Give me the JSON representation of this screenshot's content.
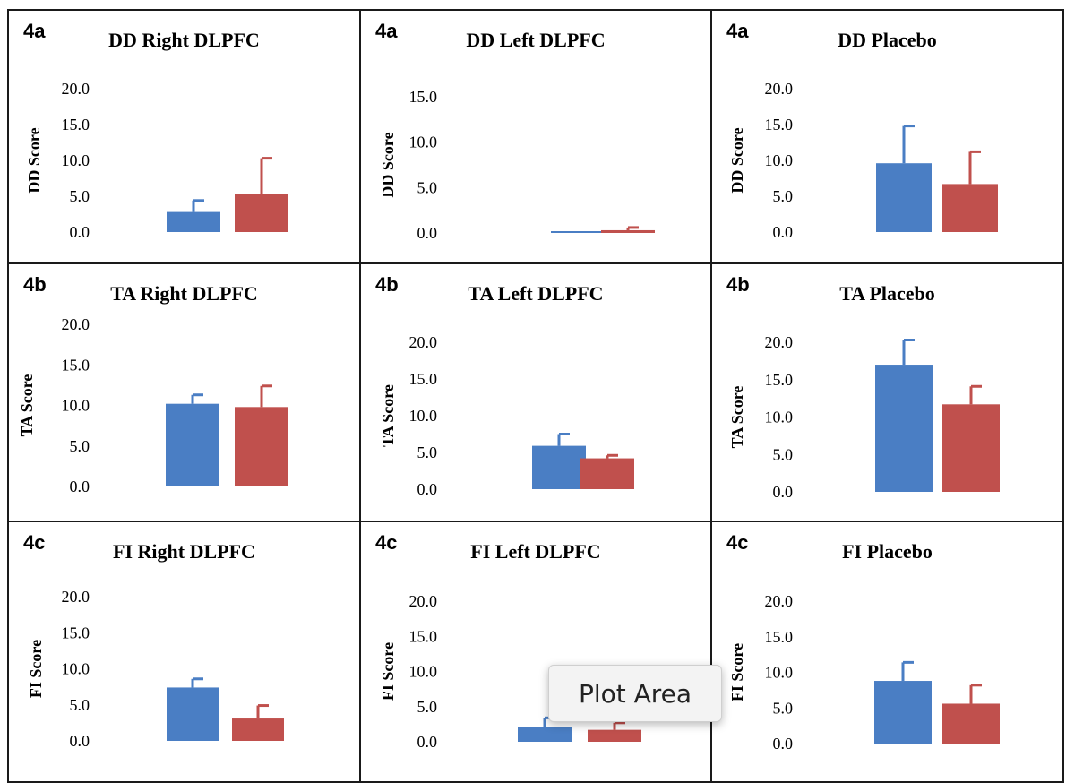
{
  "colors": {
    "series_1": "#4a7ec4",
    "series_2": "#c0504d"
  },
  "tooltip": {
    "text": "Plot Area"
  },
  "chart_data": [
    {
      "type": "bar",
      "panel": "4a",
      "title": "DD Right DLPFC",
      "ylabel": "DD Score",
      "yticks": [
        "0.0",
        "5.0",
        "10.0",
        "15.0",
        "20.0"
      ],
      "ylim": [
        0,
        20
      ],
      "series": [
        {
          "values": [
            2.8
          ],
          "error": [
            1.6
          ],
          "color": "#4a7ec4"
        },
        {
          "values": [
            5.3
          ],
          "error": [
            5.0
          ],
          "color": "#c0504d"
        }
      ]
    },
    {
      "type": "bar",
      "panel": "4a",
      "title": "DD Left DLPFC",
      "ylabel": "DD Score",
      "yticks": [
        "0.0",
        "5.0",
        "10.0",
        "15.0"
      ],
      "ylim": [
        0,
        15
      ],
      "series": [
        {
          "values": [
            0.0
          ],
          "error": [
            0.0
          ],
          "color": "#4a7ec4"
        },
        {
          "values": [
            0.3
          ],
          "error": [
            0.3
          ],
          "color": "#c0504d"
        }
      ]
    },
    {
      "type": "bar",
      "panel": "4a",
      "title": "DD Placebo",
      "ylabel": "DD Score",
      "yticks": [
        "0.0",
        "5.0",
        "10.0",
        "15.0",
        "20.0"
      ],
      "ylim": [
        0,
        20
      ],
      "series": [
        {
          "values": [
            9.6
          ],
          "error": [
            5.2
          ],
          "color": "#4a7ec4"
        },
        {
          "values": [
            6.7
          ],
          "error": [
            4.5
          ],
          "color": "#c0504d"
        }
      ]
    },
    {
      "type": "bar",
      "panel": "4b",
      "title": "TA Right DLPFC",
      "ylabel": "TA Score",
      "yticks": [
        "0.0",
        "5.0",
        "10.0",
        "15.0",
        "20.0"
      ],
      "ylim": [
        0,
        20
      ],
      "series": [
        {
          "values": [
            10.2
          ],
          "error": [
            1.1
          ],
          "color": "#4a7ec4"
        },
        {
          "values": [
            9.8
          ],
          "error": [
            2.6
          ],
          "color": "#c0504d"
        }
      ]
    },
    {
      "type": "bar",
      "panel": "4b",
      "title": "TA Left DLPFC",
      "ylabel": "TA Score",
      "yticks": [
        "0.0",
        "5.0",
        "10.0",
        "15.0",
        "20.0"
      ],
      "ylim": [
        0,
        20
      ],
      "series": [
        {
          "values": [
            5.9
          ],
          "error": [
            1.6
          ],
          "color": "#4a7ec4"
        },
        {
          "values": [
            4.2
          ],
          "error": [
            0.4
          ],
          "color": "#c0504d"
        }
      ]
    },
    {
      "type": "bar",
      "panel": "4b",
      "title": "TA Placebo",
      "ylabel": "TA Score",
      "yticks": [
        "0.0",
        "5.0",
        "10.0",
        "15.0",
        "20.0"
      ],
      "ylim": [
        0,
        20
      ],
      "series": [
        {
          "values": [
            17.0
          ],
          "error": [
            3.3
          ],
          "color": "#4a7ec4"
        },
        {
          "values": [
            11.7
          ],
          "error": [
            2.4
          ],
          "color": "#c0504d"
        }
      ]
    },
    {
      "type": "bar",
      "panel": "4c",
      "title": "FI Right DLPFC",
      "ylabel": "FI Score",
      "yticks": [
        "0.0",
        "5.0",
        "10.0",
        "15.0",
        "20.0"
      ],
      "ylim": [
        0,
        20
      ],
      "series": [
        {
          "values": [
            7.4
          ],
          "error": [
            1.2
          ],
          "color": "#4a7ec4"
        },
        {
          "values": [
            3.1
          ],
          "error": [
            1.8
          ],
          "color": "#c0504d"
        }
      ]
    },
    {
      "type": "bar",
      "panel": "4c",
      "title": "FI Left DLPFC",
      "ylabel": "FI Score",
      "yticks": [
        "0.0",
        "5.0",
        "10.0",
        "15.0",
        "20.0"
      ],
      "ylim": [
        0,
        20
      ],
      "series": [
        {
          "values": [
            2.1
          ],
          "error": [
            1.3
          ],
          "color": "#4a7ec4"
        },
        {
          "values": [
            1.7
          ],
          "error": [
            1.0
          ],
          "color": "#c0504d"
        }
      ]
    },
    {
      "type": "bar",
      "panel": "4c",
      "title": "FI Placebo",
      "ylabel": "FI Score",
      "yticks": [
        "0.0",
        "5.0",
        "10.0",
        "15.0",
        "20.0"
      ],
      "ylim": [
        0,
        20
      ],
      "series": [
        {
          "values": [
            8.8
          ],
          "error": [
            2.6
          ],
          "color": "#4a7ec4"
        },
        {
          "values": [
            5.6
          ],
          "error": [
            2.6
          ],
          "color": "#c0504d"
        }
      ]
    }
  ]
}
